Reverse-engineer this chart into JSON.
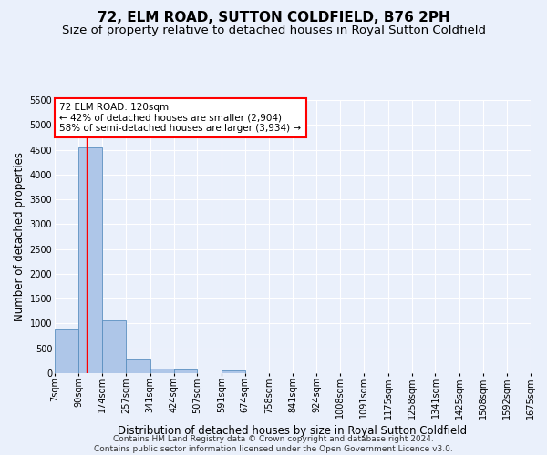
{
  "title": "72, ELM ROAD, SUTTON COLDFIELD, B76 2PH",
  "subtitle": "Size of property relative to detached houses in Royal Sutton Coldfield",
  "xlabel": "Distribution of detached houses by size in Royal Sutton Coldfield",
  "ylabel": "Number of detached properties",
  "footnote1": "Contains HM Land Registry data © Crown copyright and database right 2024.",
  "footnote2": "Contains public sector information licensed under the Open Government Licence v3.0.",
  "annotation_title": "72 ELM ROAD: 120sqm",
  "annotation_line1": "← 42% of detached houses are smaller (2,904)",
  "annotation_line2": "58% of semi-detached houses are larger (3,934) →",
  "bar_edges": [
    7,
    90,
    174,
    257,
    341,
    424,
    507,
    591,
    674,
    758,
    841,
    924,
    1008,
    1091,
    1175,
    1258,
    1341,
    1425,
    1508,
    1592,
    1675
  ],
  "bar_heights": [
    880,
    4550,
    1060,
    280,
    90,
    80,
    0,
    60,
    0,
    0,
    0,
    0,
    0,
    0,
    0,
    0,
    0,
    0,
    0,
    0
  ],
  "bar_color": "#aec6e8",
  "bar_edge_color": "#5a8fc0",
  "red_line_x": 120,
  "ylim": [
    0,
    5500
  ],
  "yticks": [
    0,
    500,
    1000,
    1500,
    2000,
    2500,
    3000,
    3500,
    4000,
    4500,
    5000,
    5500
  ],
  "background_color": "#eaf0fb",
  "grid_color": "#ffffff",
  "annotation_box_color": "#ffffff",
  "annotation_box_edge": "red",
  "title_fontsize": 11,
  "subtitle_fontsize": 9.5,
  "label_fontsize": 8.5,
  "tick_fontsize": 7,
  "footnote_fontsize": 6.5
}
